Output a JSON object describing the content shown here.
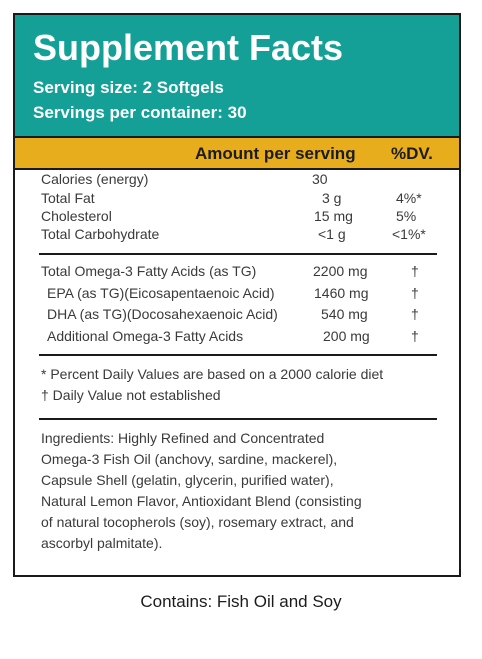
{
  "header": {
    "title": "Supplement Facts",
    "serving_size": "Serving size: 2 Softgels",
    "servings_per_container": "Servings per container: 30"
  },
  "columns": {
    "amount": "Amount per serving",
    "dv": "%DV."
  },
  "basic_nutrients": [
    {
      "name": "Calories (energy)",
      "amount": "30",
      "dv": ""
    },
    {
      "name": "Total Fat",
      "amount": "3 g",
      "dv": "4%*"
    },
    {
      "name": "Cholesterol",
      "amount": "15 mg",
      "dv": "5%"
    },
    {
      "name": "Total Carbohydrate",
      "amount": "<1 g",
      "dv": "<1%*"
    }
  ],
  "omega_nutrients": [
    {
      "name": "Total Omega-3 Fatty Acids (as TG)",
      "amount": "2200 mg",
      "dv": "†"
    },
    {
      "name": "EPA (as TG)(Eicosapentaenoic Acid)",
      "amount": "1460 mg",
      "dv": "†"
    },
    {
      "name": "DHA (as TG)(Docosahexaenoic Acid)",
      "amount": "540 mg",
      "dv": "†"
    },
    {
      "name": "Additional Omega-3 Fatty Acids",
      "amount": "200 mg",
      "dv": "†"
    }
  ],
  "footnotes": [
    "* Percent Daily Values are based on a 2000 calorie diet",
    "† Daily Value not established"
  ],
  "ingredients": [
    "Ingredients: Highly Refined and Concentrated",
    "Omega-3 Fish Oil (anchovy, sardine, mackerel),",
    "Capsule Shell (gelatin, glycerin, purified water),",
    "Natural Lemon Flavor, Antioxidant Blend (consisting",
    "of natural tocopherols (soy), rosemary extract, and",
    "ascorbyl palmitate)."
  ],
  "contains": "Contains: Fish Oil and Soy",
  "colors": {
    "header_bg": "#14a097",
    "amount_bar_bg": "#e7ad1c"
  }
}
